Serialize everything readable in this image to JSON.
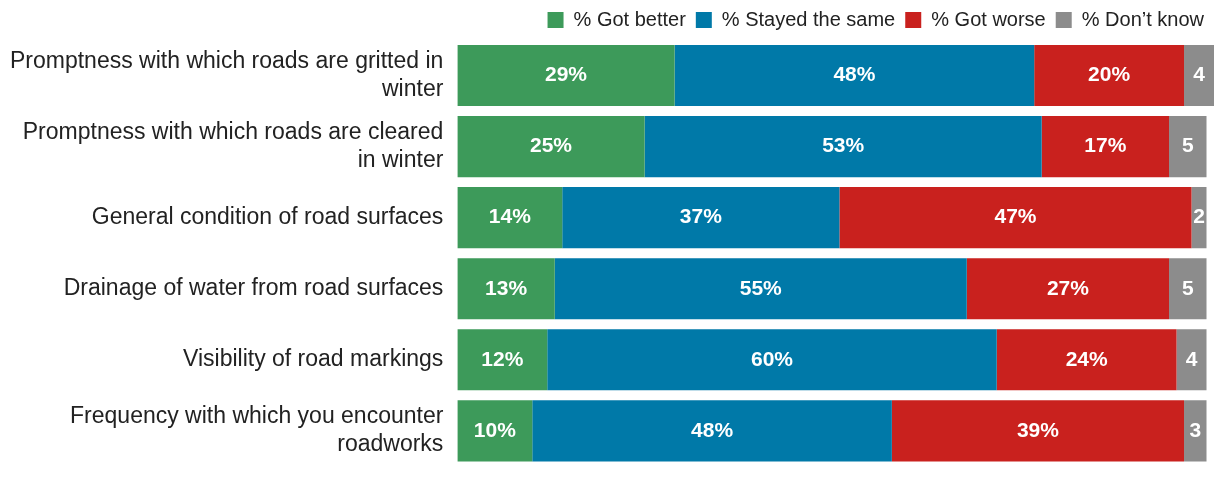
{
  "chart_data": {
    "type": "bar",
    "orientation": "horizontal",
    "stacked": true,
    "legend": "top right",
    "categories": [
      "Promptness with which roads are gritted in winter",
      "Promptness with which roads are cleared in winter",
      "General condition of road surfaces",
      "Drainage of water from road surfaces",
      "Visibility of road markings",
      "Frequency with which you encounter roadworks"
    ],
    "series": [
      {
        "name": "% Got better",
        "color": "#3d9a5a",
        "values": [
          29,
          25,
          14,
          13,
          12,
          10
        ],
        "value_labels": [
          "29%",
          "25%",
          "14%",
          "13%",
          "12%",
          "10%"
        ]
      },
      {
        "name": "% Stayed the same",
        "color": "#0079a8",
        "values": [
          48,
          53,
          37,
          55,
          60,
          48
        ],
        "value_labels": [
          "48%",
          "53%",
          "37%",
          "55%",
          "60%",
          "48%"
        ]
      },
      {
        "name": "% Got worse",
        "color": "#c9211e",
        "values": [
          20,
          17,
          47,
          27,
          24,
          39
        ],
        "value_labels": [
          "20%",
          "17%",
          "47%",
          "27%",
          "24%",
          "39%"
        ]
      },
      {
        "name": "% Don’t know",
        "color": "#8c8c8c",
        "values": [
          4,
          5,
          2,
          5,
          4,
          3
        ],
        "value_labels": [
          "4",
          "5",
          "2",
          "5",
          "4",
          "3"
        ]
      }
    ]
  }
}
